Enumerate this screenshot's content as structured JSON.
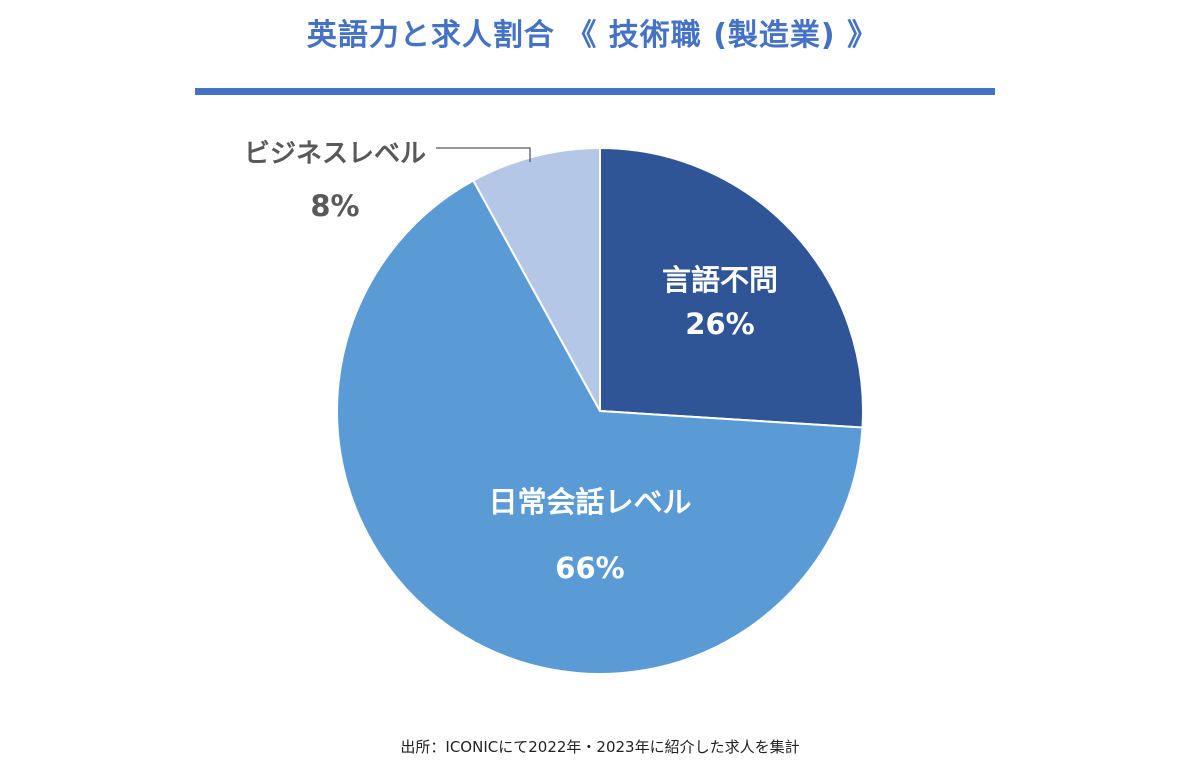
{
  "title": "英語力と求人割合 《 技術職 (製造業) 》",
  "source": "出所：ICONICにて2022年・2023年に紹介した求人を集計",
  "colors": {
    "title": "#4472c4",
    "rule": "#4472c4"
  },
  "chart_data": {
    "type": "pie",
    "title": "英語力と求人割合 《 技術職 (製造業) 》",
    "start_angle": "12 o'clock",
    "direction": "clockwise",
    "slices": [
      {
        "label": "言語不問",
        "value": 26,
        "value_label": "26%",
        "color": "#2f5597"
      },
      {
        "label": "日常会話レベル",
        "value": 66,
        "value_label": "66%",
        "color": "#5b9bd5"
      },
      {
        "label": "ビジネスレベル",
        "value": 8,
        "value_label": "8%",
        "color": "#b4c7e7"
      }
    ]
  }
}
